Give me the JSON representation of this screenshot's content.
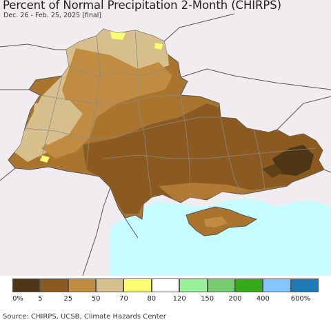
{
  "title": "Percent of Normal Precipitation 2-Month (CHIRPS)",
  "subtitle": "Dec. 26 - Feb. 25, 2025 [final]",
  "credits": "Source: CHIRPS, UCSB, Climate Hazards Center",
  "colors": {
    "land_outside": "#f1ecf0",
    "sea": "#c6fbff",
    "border": "#555555",
    "admin_border": "#8a8a8a"
  },
  "legend": {
    "swatch_colors": [
      "#4e3616",
      "#8b5a20",
      "#c08c42",
      "#d6bf8c",
      "#fdfd72",
      "#ffffff",
      "#99f29a",
      "#78cc70",
      "#36aa18",
      "#84c6fc",
      "#1e7bb6"
    ],
    "labels": [
      "0%",
      "5",
      "25",
      "50",
      "70",
      "80",
      "120",
      "150",
      "200",
      "400",
      "600%"
    ]
  }
}
